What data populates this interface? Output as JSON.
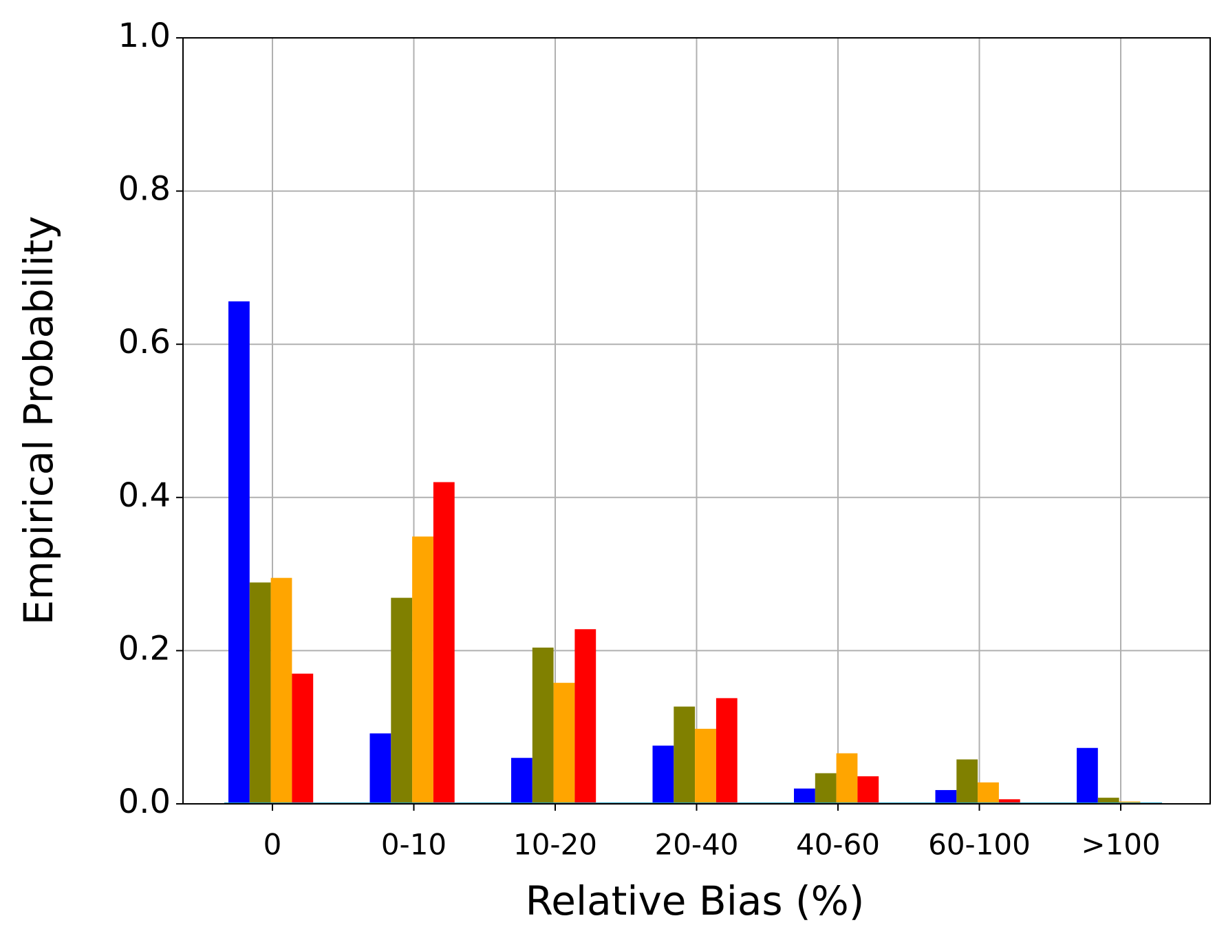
{
  "chart_data": {
    "type": "bar",
    "x_label": "Relative Bias (%)",
    "y_label": "Empirical Probability",
    "categories": [
      "0",
      "0-10",
      "10-20",
      "20-40",
      "40-60",
      "60-100",
      ">100"
    ],
    "series": [
      {
        "color": "#0000ff",
        "values": [
          0.656,
          0.092,
          0.06,
          0.076,
          0.02,
          0.018,
          0.073
        ]
      },
      {
        "color": "#808000",
        "values": [
          0.289,
          0.269,
          0.204,
          0.127,
          0.04,
          0.058,
          0.008
        ]
      },
      {
        "color": "#ffa500",
        "values": [
          0.295,
          0.349,
          0.158,
          0.098,
          0.066,
          0.028,
          0.003
        ]
      },
      {
        "color": "#ff0000",
        "values": [
          0.17,
          0.42,
          0.228,
          0.138,
          0.036,
          0.006,
          0
        ]
      }
    ],
    "ylim": [
      0,
      1
    ],
    "yticks": [
      {
        "value": 0,
        "label": "0.0"
      },
      0.2,
      0.4,
      0.6,
      0.8,
      {
        "value": 1,
        "label": "1.0"
      }
    ],
    "grid": true
  }
}
